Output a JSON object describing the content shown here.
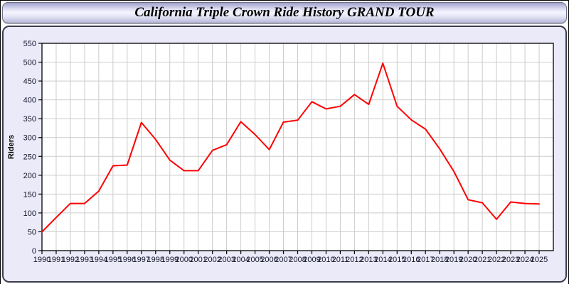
{
  "page": {
    "title_bar": "California Triple Crown Ride History GRAND TOUR"
  },
  "chart_data": {
    "type": "line",
    "title": "California Triple Crown Ride History GRAND TOUR",
    "xlabel": "",
    "ylabel": "Riders",
    "x": [
      1990,
      1991,
      1992,
      1993,
      1994,
      1995,
      1996,
      1997,
      1998,
      1999,
      2000,
      2001,
      2002,
      2003,
      2004,
      2005,
      2006,
      2007,
      2008,
      2009,
      2010,
      2011,
      2012,
      2013,
      2014,
      2015,
      2016,
      2017,
      2018,
      2019,
      2020,
      2021,
      2022,
      2023,
      2024,
      2025
    ],
    "series": [
      {
        "name": "Riders",
        "color": "#ff0000",
        "values": [
          50,
          88,
          125,
          125,
          158,
          225,
          227,
          340,
          295,
          240,
          212,
          212,
          266,
          281,
          342,
          308,
          268,
          341,
          346,
          395,
          376,
          383,
          414,
          388,
          497,
          383,
          347,
          322,
          270,
          210,
          135,
          127,
          83,
          129,
          125,
          124
        ]
      }
    ],
    "ylim": [
      0,
      550
    ],
    "xlim": [
      1990,
      2026
    ],
    "y_ticks": [
      0,
      50,
      100,
      150,
      200,
      250,
      300,
      350,
      400,
      450,
      500,
      550
    ],
    "grid": true,
    "legend_position": "none"
  },
  "style": {
    "line_color": "#ff0000",
    "grid_color": "#cccccc",
    "plot_background": "#ffffff",
    "panel_background": "#eaeaf8",
    "axis_color": "#000000",
    "tick_label_color": "#16162e"
  }
}
